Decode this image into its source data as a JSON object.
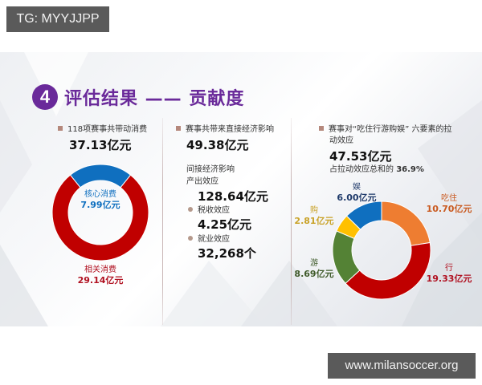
{
  "watermarks": {
    "top": "TG: MYYJJPP",
    "bottom": "www.milansoccer.org"
  },
  "slide": {
    "badge_number": "4",
    "title": "评估结果 —— 贡献度"
  },
  "col1": {
    "label": "118项赛事共带动消费",
    "total": "37.13亿元",
    "core_name": "核心消费",
    "core_value": "7.99亿元",
    "related_name": "相关消费",
    "related_value": "29.14亿元"
  },
  "col2": {
    "label": "赛事共带来直接经济影响",
    "direct_value": "49.38亿元",
    "indirect_title": "间接经济影响",
    "output_label": "产出效应",
    "output_value": "128.64亿元",
    "tax_label": "税收效应",
    "tax_value": "4.25亿元",
    "jobs_label": "就业效应",
    "jobs_value": "32,268个"
  },
  "col3": {
    "label_line1": "赛事对“吃住行游购娱” 六要素的拉",
    "label_line2": "动效应",
    "total": "47.53亿元",
    "share_prefix": "占拉动效应总和的 ",
    "share_value": "36.9%",
    "segments": [
      {
        "name": "吃住",
        "value": "10.70亿元",
        "color": "#ee7d31"
      },
      {
        "name": "行",
        "value": "19.33亿元",
        "color": "#c00000"
      },
      {
        "name": "游",
        "value": "8.69亿元",
        "color": "#548235"
      },
      {
        "name": "购",
        "value": "2.81亿元",
        "color": "#ffc000"
      },
      {
        "name": "娱",
        "value": "6.00亿元",
        "color": "#0f6fbf"
      }
    ]
  },
  "colors": {
    "title_purple": "#6a2a9a",
    "core_blue": "#0f6fbf",
    "related_red": "#c00000",
    "label_ziwei_orange": "#c9591f",
    "label_xing_red": "#b01020",
    "label_you_green": "#3f5a2a",
    "label_gou_gold": "#c9a227",
    "label_yu_navy": "#1f3a6a"
  },
  "chart_data": [
    {
      "type": "pie",
      "title": "118项赛事共带动消费 37.13亿元",
      "categories": [
        "核心消费",
        "相关消费"
      ],
      "values": [
        7.99,
        29.14
      ],
      "unit": "亿元",
      "colors": [
        "#0f6fbf",
        "#c00000"
      ],
      "donut": true
    },
    {
      "type": "pie",
      "title": "赛事对“吃住行游购娱”六要素的拉动效应 47.53亿元",
      "categories": [
        "吃住",
        "行",
        "游",
        "购",
        "娱"
      ],
      "values": [
        10.7,
        19.33,
        8.69,
        2.81,
        6.0
      ],
      "unit": "亿元",
      "colors": [
        "#ee7d31",
        "#c00000",
        "#548235",
        "#ffc000",
        "#0f6fbf"
      ],
      "donut": true,
      "annotation": "占拉动效应总和的 36.9%"
    }
  ]
}
